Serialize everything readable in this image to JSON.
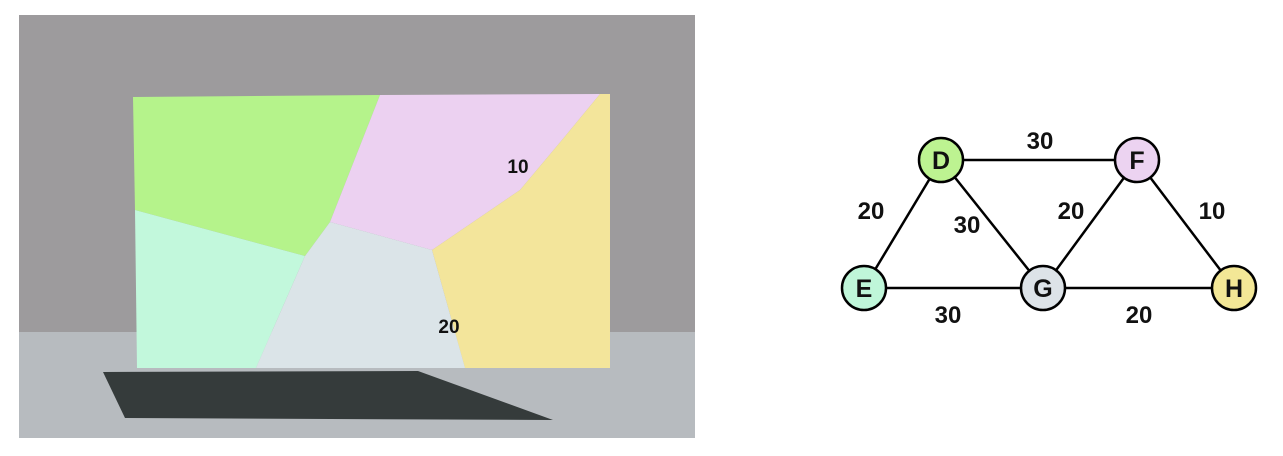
{
  "scene": {
    "region_labels": [
      "10",
      "20"
    ],
    "colors": {
      "wall": "#9d9b9d",
      "floor": "#b7bbbf",
      "shadow": "#353b3b",
      "green": "#b5f38b",
      "pink": "#ecd1f1",
      "yellow": "#f3e59b",
      "mint": "#c2f8dc",
      "light_gray": "#dbe4e8"
    }
  },
  "graph": {
    "nodes": [
      {
        "id": "D",
        "label": "D",
        "color": "#bdf391"
      },
      {
        "id": "F",
        "label": "F",
        "color": "#ecd3f1"
      },
      {
        "id": "E",
        "label": "E",
        "color": "#bff6d9"
      },
      {
        "id": "G",
        "label": "G",
        "color": "#dde3e8"
      },
      {
        "id": "H",
        "label": "H",
        "color": "#f3e796"
      }
    ],
    "edges": [
      {
        "from": "D",
        "to": "F",
        "weight": "30"
      },
      {
        "from": "D",
        "to": "E",
        "weight": "20"
      },
      {
        "from": "D",
        "to": "G",
        "weight": "30"
      },
      {
        "from": "F",
        "to": "G",
        "weight": "20"
      },
      {
        "from": "F",
        "to": "H",
        "weight": "10"
      },
      {
        "from": "E",
        "to": "G",
        "weight": "30"
      },
      {
        "from": "G",
        "to": "H",
        "weight": "20"
      }
    ]
  }
}
